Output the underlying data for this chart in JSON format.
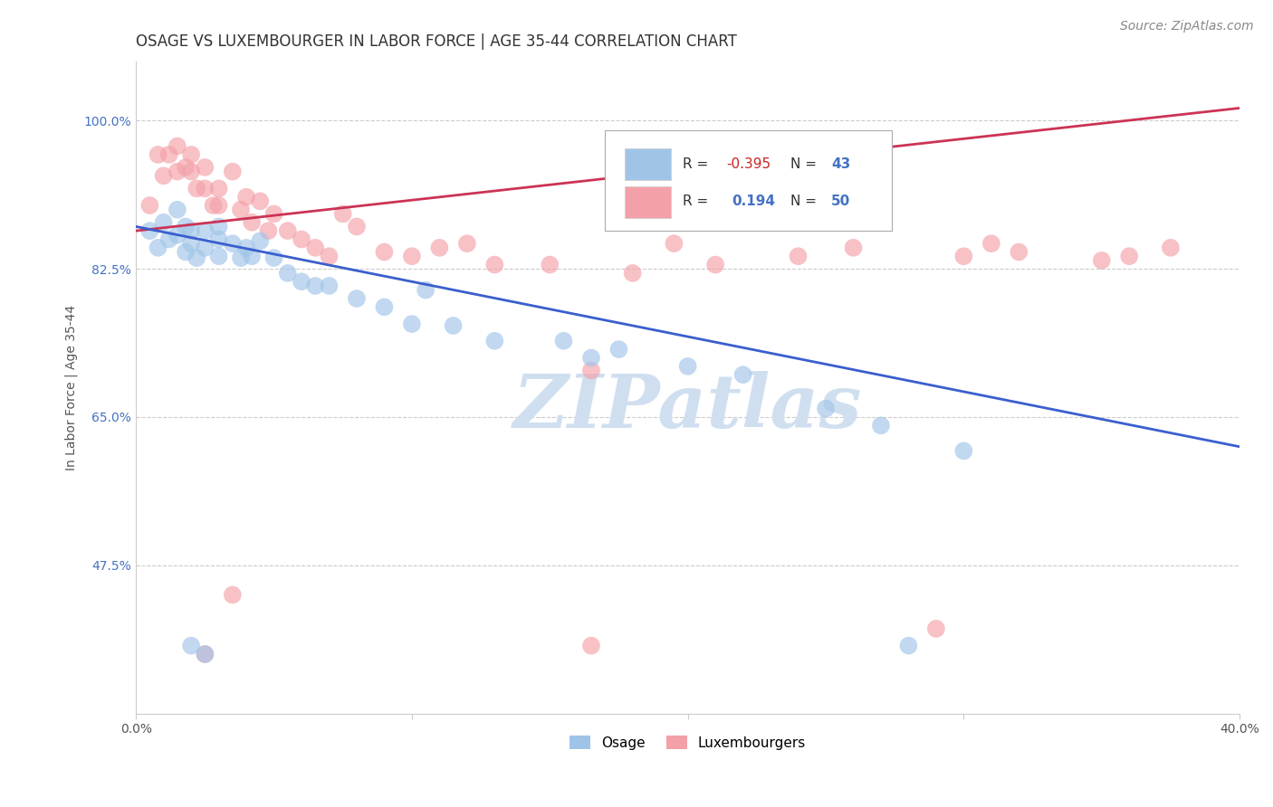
{
  "title": "OSAGE VS LUXEMBOURGER IN LABOR FORCE | AGE 35-44 CORRELATION CHART",
  "source": "Source: ZipAtlas.com",
  "xlabel": "",
  "ylabel": "In Labor Force | Age 35-44",
  "xlim": [
    0.0,
    0.4
  ],
  "ylim": [
    0.3,
    1.07
  ],
  "xticks": [
    0.0,
    0.1,
    0.2,
    0.3,
    0.4
  ],
  "xtick_labels": [
    "0.0%",
    "",
    "",
    "",
    "40.0%"
  ],
  "yticks": [
    0.475,
    0.65,
    0.825,
    1.0
  ],
  "ytick_labels": [
    "47.5%",
    "65.0%",
    "82.5%",
    "100.0%"
  ],
  "blue_R": -0.395,
  "blue_N": 43,
  "pink_R": 0.194,
  "pink_N": 50,
  "blue_color": "#a0c4e8",
  "pink_color": "#f4a0a8",
  "blue_line_color": "#3a5fcd",
  "pink_line_color": "#cc3355",
  "legend_blue_label": "Osage",
  "legend_pink_label": "Luxembourgers",
  "blue_x": [
    0.005,
    0.008,
    0.01,
    0.012,
    0.015,
    0.015,
    0.018,
    0.018,
    0.02,
    0.02,
    0.022,
    0.025,
    0.025,
    0.03,
    0.03,
    0.03,
    0.035,
    0.038,
    0.04,
    0.042,
    0.045,
    0.05,
    0.055,
    0.06,
    0.065,
    0.07,
    0.08,
    0.09,
    0.1,
    0.105,
    0.115,
    0.13,
    0.155,
    0.175,
    0.2,
    0.22,
    0.25,
    0.27,
    0.3,
    0.02,
    0.025,
    0.165,
    0.28
  ],
  "blue_y": [
    0.87,
    0.85,
    0.88,
    0.86,
    0.895,
    0.865,
    0.875,
    0.845,
    0.87,
    0.855,
    0.838,
    0.87,
    0.85,
    0.875,
    0.86,
    0.84,
    0.855,
    0.838,
    0.85,
    0.84,
    0.858,
    0.838,
    0.82,
    0.81,
    0.805,
    0.805,
    0.79,
    0.78,
    0.76,
    0.8,
    0.758,
    0.74,
    0.74,
    0.73,
    0.71,
    0.7,
    0.66,
    0.64,
    0.61,
    0.38,
    0.37,
    0.72,
    0.38
  ],
  "pink_x": [
    0.005,
    0.008,
    0.01,
    0.012,
    0.015,
    0.015,
    0.018,
    0.02,
    0.02,
    0.022,
    0.025,
    0.025,
    0.028,
    0.03,
    0.03,
    0.035,
    0.038,
    0.04,
    0.042,
    0.045,
    0.048,
    0.05,
    0.055,
    0.06,
    0.065,
    0.07,
    0.075,
    0.08,
    0.09,
    0.1,
    0.11,
    0.12,
    0.13,
    0.15,
    0.165,
    0.18,
    0.195,
    0.21,
    0.24,
    0.26,
    0.3,
    0.31,
    0.32,
    0.35,
    0.36,
    0.375,
    0.025,
    0.035,
    0.165,
    0.29
  ],
  "pink_y": [
    0.9,
    0.96,
    0.935,
    0.96,
    0.94,
    0.97,
    0.945,
    0.96,
    0.94,
    0.92,
    0.945,
    0.92,
    0.9,
    0.92,
    0.9,
    0.94,
    0.895,
    0.91,
    0.88,
    0.905,
    0.87,
    0.89,
    0.87,
    0.86,
    0.85,
    0.84,
    0.89,
    0.875,
    0.845,
    0.84,
    0.85,
    0.855,
    0.83,
    0.83,
    0.705,
    0.82,
    0.855,
    0.83,
    0.84,
    0.85,
    0.84,
    0.855,
    0.845,
    0.835,
    0.84,
    0.85,
    0.37,
    0.44,
    0.38,
    0.4
  ],
  "grid_color": "#cccccc",
  "background_color": "#ffffff",
  "title_fontsize": 12,
  "axis_label_fontsize": 10,
  "tick_fontsize": 10,
  "source_fontsize": 10,
  "watermark_text": "ZIPatlas",
  "watermark_color": "#d0dff0",
  "watermark_fontsize": 60,
  "blue_trend_x0": 0.0,
  "blue_trend_y0": 0.875,
  "blue_trend_x1": 0.4,
  "blue_trend_y1": 0.615,
  "pink_trend_x0": 0.0,
  "pink_trend_y0": 0.87,
  "pink_trend_x1": 0.4,
  "pink_trend_y1": 1.015
}
